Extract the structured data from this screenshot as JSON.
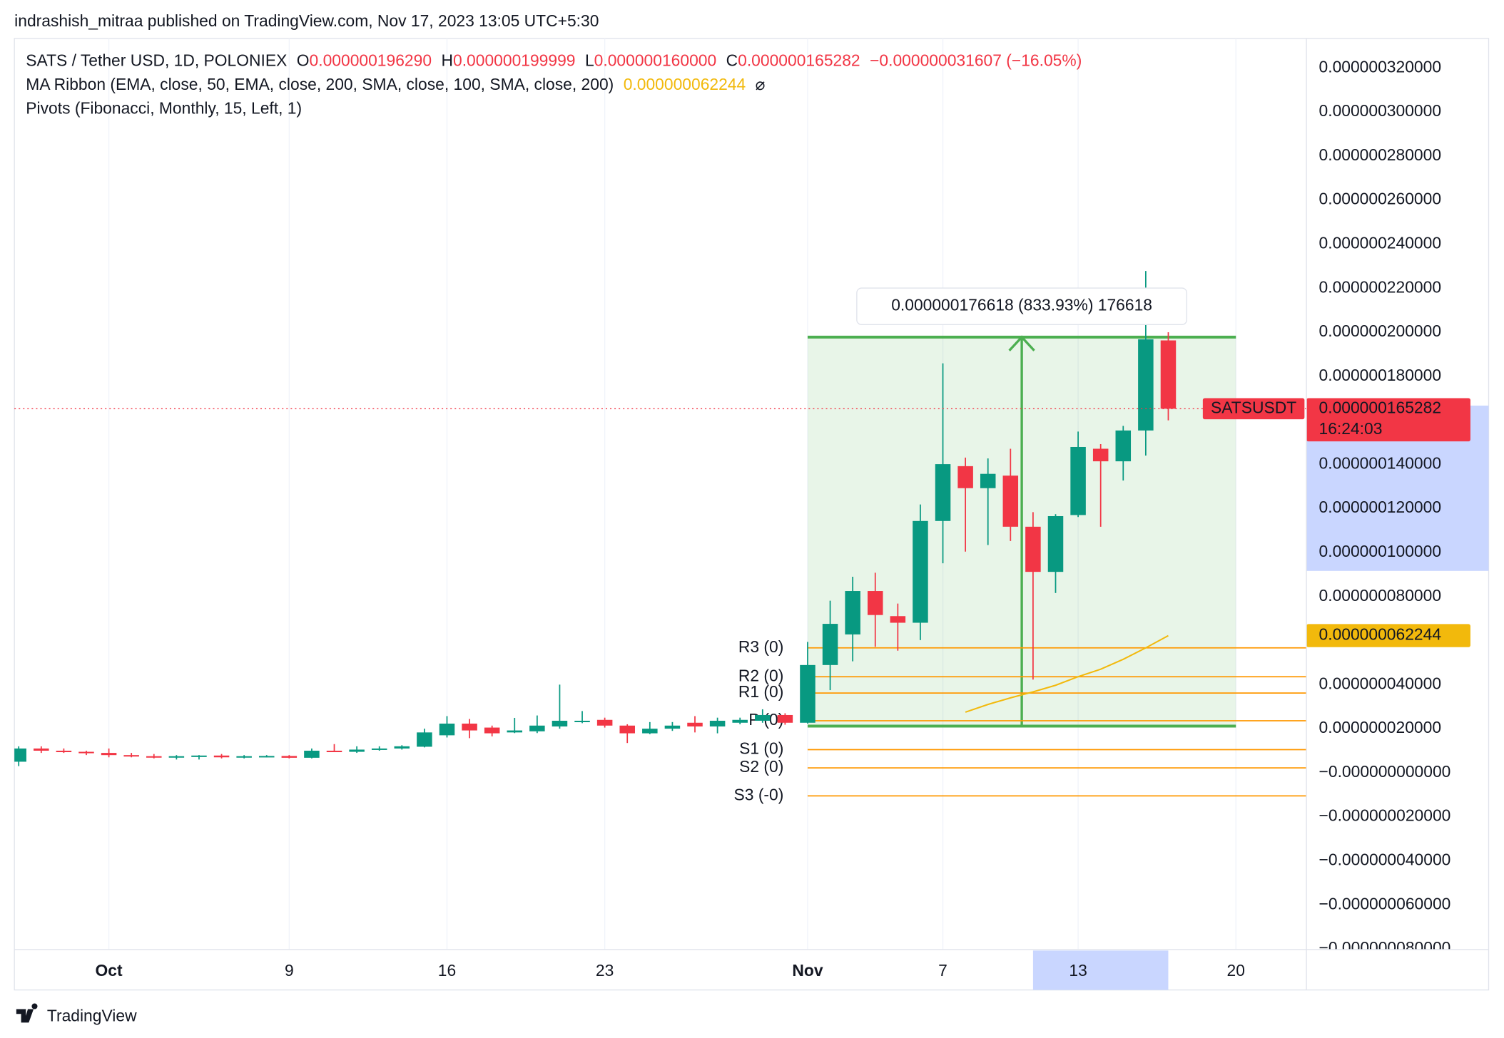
{
  "header": {
    "published": "indrashish_mitraa published on TradingView.com, Nov 17, 2023 13:05 UTC+5:30",
    "brand": "TradingView"
  },
  "chart_data": {
    "type": "candlestick",
    "legend": {
      "symbol": "SATS / Tether USD, 1D, POLONIEX",
      "ohlc": [
        {
          "key": "O",
          "text": "0.000000196290"
        },
        {
          "key": "H",
          "text": "0.000000199999"
        },
        {
          "key": "L",
          "text": "0.000000160000"
        },
        {
          "key": "C",
          "text": "0.000000165282"
        }
      ],
      "change": "−0.000000031607 (−16.05%)"
    },
    "up_color": "#089981",
    "down_color": "#f23645",
    "categories": [
      null,
      null,
      null,
      null,
      "Oct",
      null,
      null,
      null,
      null,
      null,
      null,
      null,
      "9",
      null,
      null,
      null,
      null,
      null,
      null,
      "16",
      null,
      null,
      null,
      null,
      null,
      null,
      "23",
      null,
      null,
      null,
      null,
      null,
      null,
      null,
      null,
      "Nov",
      null,
      null,
      null,
      null,
      null,
      "7",
      null,
      null,
      null,
      null,
      null,
      "13",
      null,
      null,
      null,
      null,
      null,
      null,
      "20"
    ],
    "open": [
      5e-09,
      1.1e-08,
      1e-08,
      9.5e-09,
      9e-09,
      8e-09,
      7.5e-09,
      7e-09,
      7.5e-09,
      7.8e-09,
      7e-09,
      7.5e-09,
      7.6e-09,
      6.8e-09,
      1e-08,
      9.5e-09,
      1.05e-08,
      1.1e-08,
      1.18e-08,
      1.7e-08,
      2.23e-08,
      2.05e-08,
      1.83e-08,
      1.88e-08,
      2.1e-08,
      2.31e-08,
      2.4e-08,
      2.14e-08,
      1.79e-08,
      2e-08,
      2.27e-08,
      2.1e-08,
      2.27e-08,
      2.36e-08,
      2.62e-08,
      2.27e-08,
      4.89e-08,
      6.28e-08,
      8.25e-08,
      7.11e-08,
      6.81e-08,
      1.143e-07,
      1.392e-07,
      1.292e-07,
      1.349e-07,
      1.117e-07,
      9.12e-08,
      1.17e-07,
      1.471e-07,
      1.414e-07,
      1.554e-07,
      1.9629e-07,
      null,
      null,
      null
    ],
    "high": [
      1.2e-08,
      1.2e-08,
      1.1e-08,
      1e-08,
      1.1e-08,
      9e-09,
      8.5e-09,
      8e-09,
      8e-09,
      8.5e-09,
      8e-09,
      8e-09,
      8e-09,
      1.1e-08,
      1.3e-08,
      1.2e-08,
      1.2e-08,
      1.25e-08,
      2e-08,
      2.57e-08,
      2.44e-08,
      2.14e-08,
      2.49e-08,
      2.6e-08,
      4e-08,
      2.8e-08,
      2.5e-08,
      2.2e-08,
      2.3e-08,
      2.3e-08,
      2.57e-08,
      2.5e-08,
      2.5e-08,
      2.88e-08,
      2.7e-08,
      5.94e-08,
      7.81e-08,
      8.9e-08,
      9.08e-08,
      7.68e-08,
      1.218e-07,
      1.859e-07,
      1.431e-07,
      1.427e-07,
      1.471e-07,
      1.183e-07,
      1.174e-07,
      1.549e-07,
      1.492e-07,
      1.575e-07,
      2.278e-07,
      1.99999e-07,
      null,
      null,
      null
    ],
    "low": [
      3e-09,
      9e-09,
      9e-09,
      8e-09,
      7e-09,
      7e-09,
      6.5e-09,
      6e-09,
      6e-09,
      6.5e-09,
      6.5e-09,
      7e-09,
      6.5e-09,
      6.5e-09,
      9.5e-09,
      9e-09,
      1e-08,
      1.05e-08,
      1.15e-08,
      1.6e-08,
      1.57e-08,
      1.65e-08,
      1.8e-08,
      1.8e-08,
      2e-08,
      2.25e-08,
      2.05e-08,
      1.35e-08,
      1.75e-08,
      1.9e-08,
      1.83e-08,
      1.79e-08,
      2.2e-08,
      2.27e-08,
      2.18e-08,
      2.23e-08,
      3.75e-08,
      5.06e-08,
      5.72e-08,
      5.54e-08,
      6.02e-08,
      9.51e-08,
      1.004e-07,
      1.034e-07,
      1.052e-07,
      4.23e-08,
      8.16e-08,
      1.161e-07,
      1.117e-07,
      1.327e-07,
      1.44e-07,
      1.6e-07,
      null,
      null,
      null
    ],
    "close": [
      1.1e-08,
      1e-08,
      9.5e-09,
      9e-09,
      8e-09,
      7.5e-09,
      7e-09,
      7.5e-09,
      7.8e-09,
      7e-09,
      7.5e-09,
      7.6e-09,
      6.8e-09,
      1e-08,
      9.5e-09,
      1.05e-08,
      1.1e-08,
      1.2e-08,
      1.83e-08,
      2.23e-08,
      1.92e-08,
      1.79e-08,
      1.92e-08,
      2.14e-08,
      2.36e-08,
      2.36e-08,
      2.14e-08,
      1.79e-08,
      2e-08,
      2.14e-08,
      2.1e-08,
      2.36e-08,
      2.4e-08,
      2.62e-08,
      2.27e-08,
      4.89e-08,
      6.76e-08,
      8.25e-08,
      7.16e-08,
      6.81e-08,
      1.143e-07,
      1.401e-07,
      1.292e-07,
      1.357e-07,
      1.117e-07,
      9.12e-08,
      1.165e-07,
      1.479e-07,
      1.414e-07,
      1.554e-07,
      1.968e-07,
      1.65282e-07,
      null,
      null,
      null
    ],
    "ma": {
      "name": "MA Ribbon (EMA, close, 50, EMA, close, 200, SMA, close, 100, SMA, close, 200)",
      "value_label": "0.000000062244",
      "icon": "⌀",
      "color": "#f2b90c",
      "values": [
        null,
        null,
        null,
        null,
        null,
        null,
        null,
        null,
        null,
        null,
        null,
        null,
        null,
        null,
        null,
        null,
        null,
        null,
        null,
        null,
        null,
        null,
        null,
        null,
        null,
        null,
        null,
        null,
        null,
        null,
        null,
        null,
        null,
        null,
        null,
        null,
        null,
        null,
        null,
        null,
        null,
        null,
        2.75e-08,
        3.1e-08,
        3.4e-08,
        3.67e-08,
        3.97e-08,
        4.36e-08,
        4.7e-08,
        5.15e-08,
        5.67e-08,
        6.2244e-08,
        null,
        null,
        null
      ]
    },
    "pivots": {
      "title": "Pivots (Fibonacci, Monthly, 15, Left, 1)",
      "color": "#ff9800",
      "levels": [
        {
          "label": "R3 (0)",
          "value": 5.67e-08
        },
        {
          "label": "R2 (0)",
          "value": 4.36e-08
        },
        {
          "label": "R1 (0)",
          "value": 3.62e-08
        },
        {
          "label": "P (0)",
          "value": 2.36e-08
        },
        {
          "label": "S1 (0)",
          "value": 1.05e-08
        },
        {
          "label": "S2 (0)",
          "value": 2.2e-09
        },
        {
          "label": "S3 (-0)",
          "value": -1.05e-08
        }
      ]
    },
    "measure": {
      "label": "0.000000176618 (833.93%) 176618",
      "low": 2.1179e-08,
      "high": 1.97797e-07,
      "color": "#4caf50"
    },
    "last_price": {
      "name": "SATSUSDT",
      "value": 1.65282e-07,
      "label": "0.000000165282",
      "countdown": "16:24:03"
    },
    "ylim": [
      -8.03e-08,
      3.334e-07
    ],
    "yticks": [
      {
        "value": 3.2e-07,
        "label": "0.000000320000"
      },
      {
        "value": 3e-07,
        "label": "0.000000300000"
      },
      {
        "value": 2.8e-07,
        "label": "0.000000280000"
      },
      {
        "value": 2.6e-07,
        "label": "0.000000260000"
      },
      {
        "value": 2.4e-07,
        "label": "0.000000240000"
      },
      {
        "value": 2.2e-07,
        "label": "0.000000220000"
      },
      {
        "value": 2e-07,
        "label": "0.000000200000"
      },
      {
        "value": 1.8e-07,
        "label": "0.000000180000"
      },
      {
        "value": 1.4e-07,
        "label": "0.000000140000"
      },
      {
        "value": 1.2e-07,
        "label": "0.000000120000"
      },
      {
        "value": 1e-07,
        "label": "0.000000100000"
      },
      {
        "value": 8e-08,
        "label": "0.000000080000"
      },
      {
        "value": 4e-08,
        "label": "0.000000040000"
      },
      {
        "value": 2e-08,
        "label": "0.000000020000"
      },
      {
        "value": 0,
        "label": "−0.000000000000"
      },
      {
        "value": -2e-08,
        "label": "−0.000000020000"
      },
      {
        "value": -4e-08,
        "label": "−0.000000040000"
      },
      {
        "value": -6e-08,
        "label": "−0.000000060000"
      },
      {
        "value": -8e-08,
        "label": "−0.000000080000"
      }
    ],
    "grid": true
  }
}
